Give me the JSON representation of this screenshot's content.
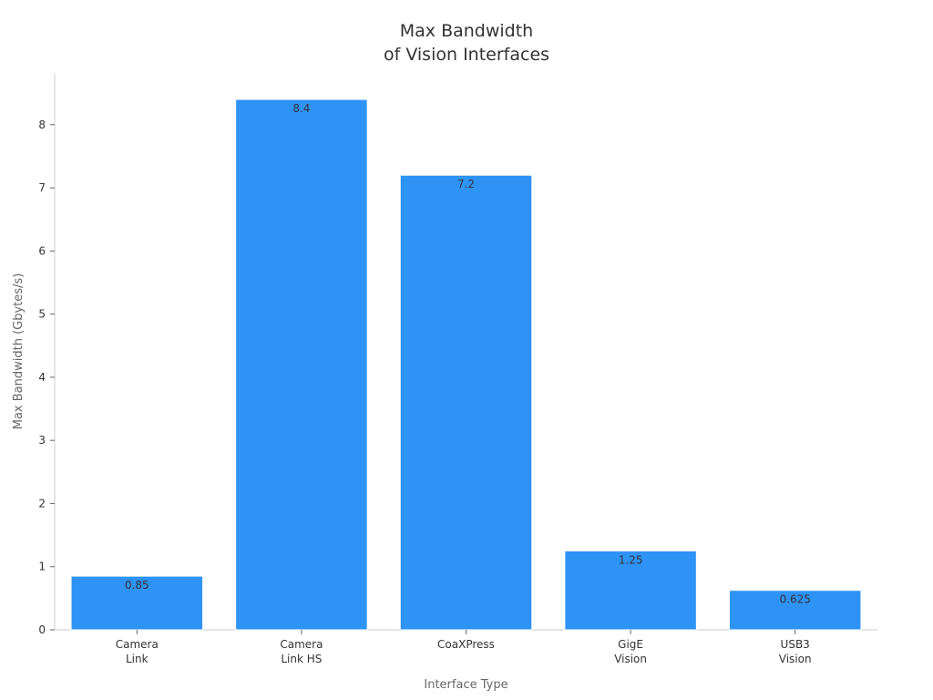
{
  "chart_data": {
    "type": "bar",
    "title": [
      "Max Bandwidth",
      "of Vision Interfaces"
    ],
    "xlabel": "Interface Type",
    "ylabel": "Max Bandwidth (Gbytes/s)",
    "categories": [
      [
        "Camera",
        "Link"
      ],
      [
        "Camera",
        "Link HS"
      ],
      [
        "CoaXPress"
      ],
      [
        "GigE",
        "Vision"
      ],
      [
        "USB3",
        "Vision"
      ]
    ],
    "values": [
      0.85,
      8.4,
      7.2,
      1.25,
      0.625
    ],
    "data_labels": [
      "0.85",
      "8.4",
      "7.2",
      "1.25",
      "0.625"
    ],
    "yticks": [
      0,
      1,
      2,
      3,
      4,
      5,
      6,
      7,
      8
    ],
    "ylim": [
      0,
      8.82
    ],
    "grid": false,
    "legend": "none",
    "colors": {
      "bar": "#2e93f5",
      "axis": "#cccccc",
      "text": "#333333",
      "axis_title": "#666666"
    }
  }
}
